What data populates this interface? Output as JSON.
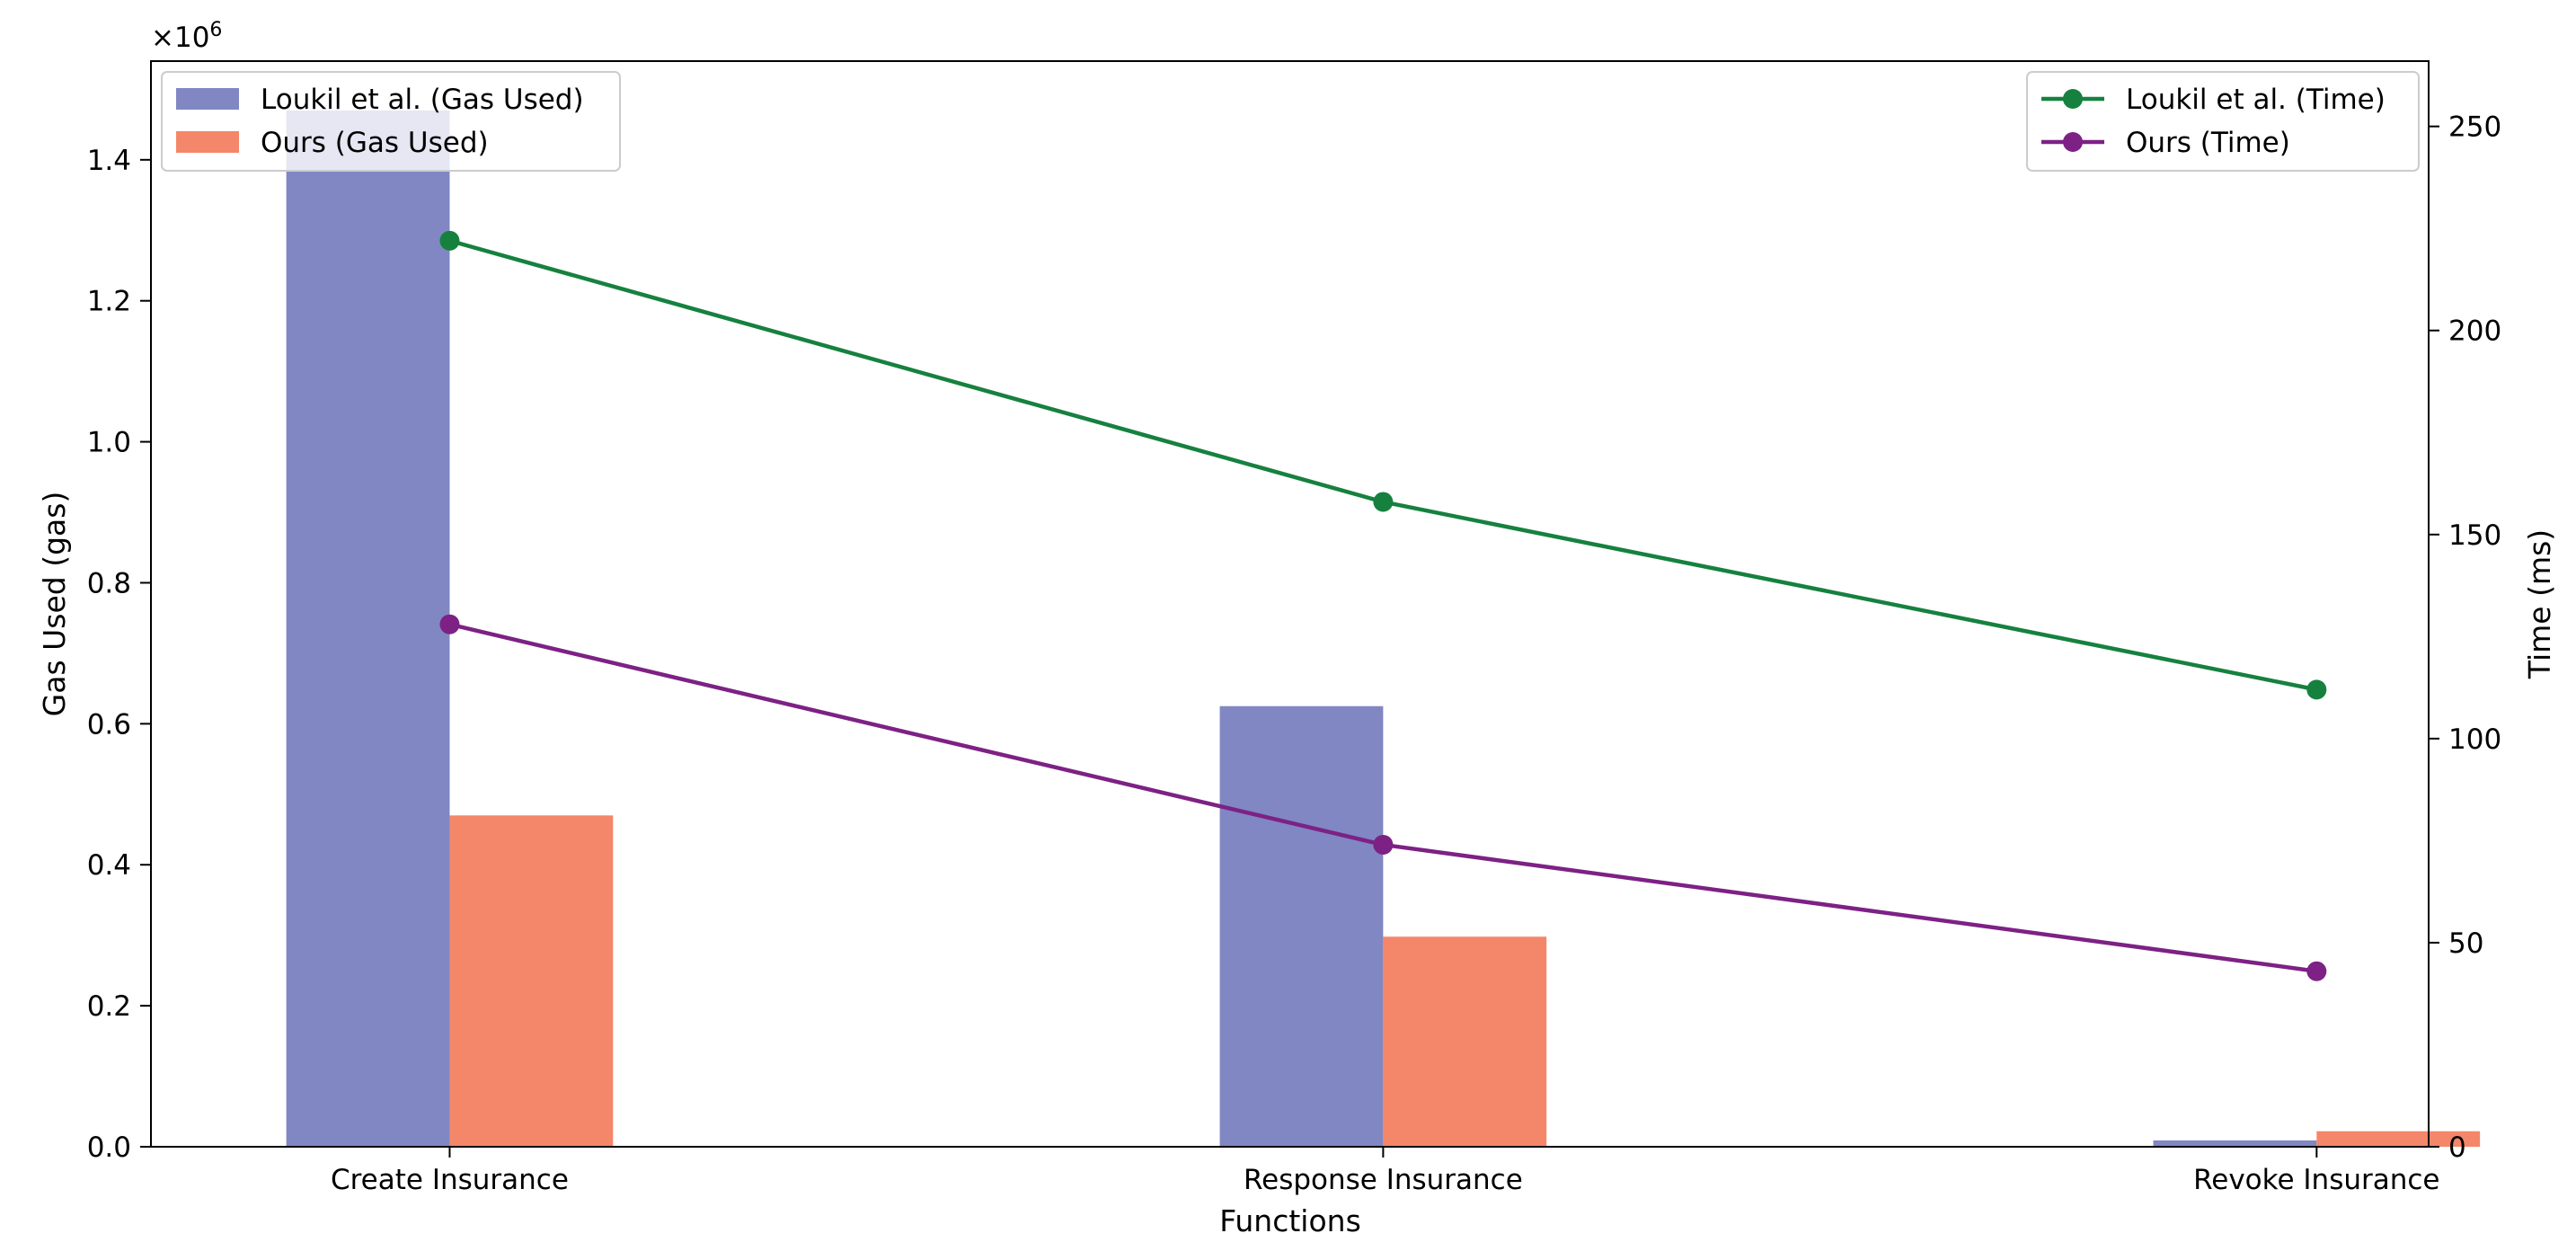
{
  "chart_data": {
    "type": "bar",
    "categories": [
      "Create Insurance",
      "Response Insurance",
      "Revoke Insurance"
    ],
    "xlabel": "Functions",
    "ylabel_left": "Gas Used (gas)",
    "ylabel_right": "Time (ms)",
    "offset_label_base": "×10",
    "offset_label_exp": "6",
    "ylim_left": [
      0,
      1540000
    ],
    "ylim_right": [
      0,
      266
    ],
    "yticks_left": [
      0,
      200000,
      400000,
      600000,
      800000,
      1000000,
      1200000,
      1400000
    ],
    "ytick_labels_left": [
      "0.0",
      "0.2",
      "0.4",
      "0.6",
      "0.8",
      "1.0",
      "1.2",
      "1.4"
    ],
    "yticks_right": [
      0,
      50,
      100,
      150,
      200,
      250
    ],
    "ytick_labels_right": [
      "0",
      "50",
      "100",
      "150",
      "200",
      "250"
    ],
    "bar_series": [
      {
        "name": "Loukil et al. (Gas Used)",
        "color": "#8087c3",
        "values": [
          1470000,
          625000,
          9000
        ]
      },
      {
        "name": "Ours (Gas Used)",
        "color": "#f4866a",
        "values": [
          470000,
          298000,
          22000
        ]
      }
    ],
    "line_series": [
      {
        "name": "Loukil et al. (Time)",
        "color": "#16813f",
        "values": [
          222,
          158,
          112
        ]
      },
      {
        "name": "Ours (Time)",
        "color": "#7d2185",
        "values": [
          128,
          74,
          43
        ]
      }
    ],
    "legend_left_placement": "top-left",
    "legend_right_placement": "top-right",
    "grid": false
  }
}
